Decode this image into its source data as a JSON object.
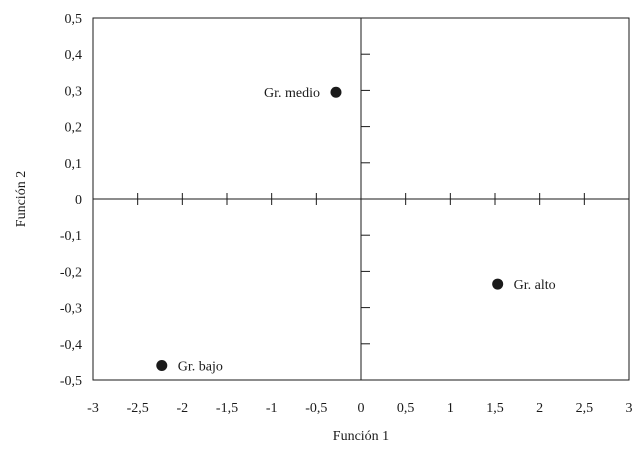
{
  "chart_data": {
    "type": "scatter",
    "xlabel": "Función 1",
    "ylabel": "Función 2",
    "xlim": [
      -3,
      3
    ],
    "ylim": [
      -0.5,
      0.5
    ],
    "x_ticks": [
      "-3",
      "-2,5",
      "-2",
      "-1,5",
      "-1",
      "-0,5",
      "0",
      "0,5",
      "1",
      "1,5",
      "2",
      "2,5",
      "3"
    ],
    "y_ticks": [
      "0,5",
      "0,4",
      "0,3",
      "0,2",
      "0,1",
      "0",
      "-0,1",
      "-0,2",
      "-0,3",
      "-0,4",
      "-0,5"
    ],
    "grid": false,
    "points": [
      {
        "label": "Gr. medio",
        "x": -0.28,
        "y": 0.295
      },
      {
        "label": "Gr. alto",
        "x": 1.53,
        "y": -0.235
      },
      {
        "label": "Gr. bajo",
        "x": -2.23,
        "y": -0.46
      }
    ],
    "colors": {
      "marker": "#1a1a1a",
      "axes": "#1a1a1a"
    }
  }
}
